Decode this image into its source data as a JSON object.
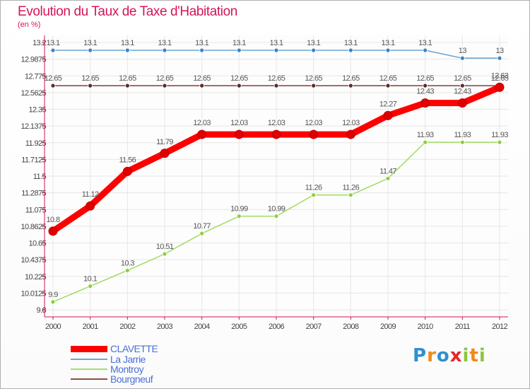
{
  "header": {
    "title": "Evolution du Taux de Taxe d'Habitation",
    "subtitle": "(en %)"
  },
  "chart_data": {
    "type": "line",
    "x": [
      "2000",
      "2001",
      "2002",
      "2003",
      "2004",
      "2005",
      "2006",
      "2007",
      "2008",
      "2009",
      "2010",
      "2011",
      "2012"
    ],
    "y_ticks": [
      "9.8",
      "10.0125",
      "10.225",
      "10.4375",
      "10.65",
      "10.8625",
      "11.075",
      "11.2875",
      "11.5",
      "11.7125",
      "11.925",
      "12.1375",
      "12.35",
      "12.5625",
      "12.775",
      "12.9875",
      "13.2"
    ],
    "ylim": [
      9.8,
      13.2
    ],
    "grid": true,
    "legend_position": "bottom-left",
    "series": [
      {
        "name": "CLAVETTE",
        "color": "#ff0000",
        "values": [
          10.8,
          11.12,
          11.56,
          11.79,
          12.03,
          12.03,
          12.03,
          12.03,
          12.03,
          12.27,
          12.43,
          12.43,
          12.63
        ],
        "labels": [
          "10.8",
          "11.12",
          "11.56",
          "11.79",
          "12.03",
          "12.03",
          "12.03",
          "12.03",
          "12.03",
          "12.27",
          "12.43",
          "12.43",
          "12.63"
        ]
      },
      {
        "name": "La Jarrie",
        "color": "#6ea6d2",
        "values": [
          13.1,
          13.1,
          13.1,
          13.1,
          13.1,
          13.1,
          13.1,
          13.1,
          13.1,
          13.1,
          13.1,
          13,
          13
        ],
        "labels": [
          "13.1",
          "13.1",
          "13.1",
          "13.1",
          "13.1",
          "13.1",
          "13.1",
          "13.1",
          "13.1",
          "13.1",
          "13.1",
          "13",
          "13"
        ]
      },
      {
        "name": "Montroy",
        "color": "#a6dd6a",
        "values": [
          9.9,
          10.1,
          10.3,
          10.51,
          10.77,
          10.99,
          10.99,
          11.26,
          11.26,
          11.47,
          11.93,
          11.93,
          11.93
        ],
        "labels": [
          "9.9",
          "10.1",
          "10.3",
          "10.51",
          "10.77",
          "10.99",
          "10.99",
          "11.26",
          "11.26",
          "11.47",
          "11.93",
          "11.93",
          "11.93"
        ]
      },
      {
        "name": "Bourgneuf",
        "color": "#8a4b4b",
        "values": [
          12.65,
          12.65,
          12.65,
          12.65,
          12.65,
          12.65,
          12.65,
          12.65,
          12.65,
          12.65,
          12.65,
          12.65,
          12.65
        ],
        "labels": [
          "12.65",
          "12.65",
          "12.65",
          "12.65",
          "12.65",
          "12.65",
          "12.65",
          "12.65",
          "12.65",
          "12.65",
          "12.65",
          "12.65",
          "12.65"
        ]
      }
    ]
  },
  "logo": {
    "letters": [
      "P",
      "r",
      "o",
      "x",
      "i",
      "t",
      "i"
    ]
  }
}
